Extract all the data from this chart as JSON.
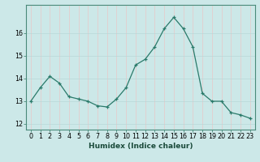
{
  "x": [
    0,
    1,
    2,
    3,
    4,
    5,
    6,
    7,
    8,
    9,
    10,
    11,
    12,
    13,
    14,
    15,
    16,
    17,
    18,
    19,
    20,
    21,
    22,
    23
  ],
  "y": [
    13.0,
    13.6,
    14.1,
    13.8,
    13.2,
    13.1,
    13.0,
    12.8,
    12.75,
    13.1,
    13.6,
    14.6,
    14.85,
    15.4,
    16.2,
    16.7,
    16.2,
    15.4,
    13.35,
    13.0,
    13.0,
    12.5,
    12.4,
    12.25
  ],
  "line_color": "#2a7a6a",
  "marker": "+",
  "marker_color": "#2a7a6a",
  "bg_color": "#cce8e8",
  "grid_color_v": "#e8c8c8",
  "grid_color_h": "#b8d8d8",
  "xlabel": "Humidex (Indice chaleur)",
  "ylim": [
    11.75,
    17.25
  ],
  "xlim": [
    -0.5,
    23.5
  ],
  "yticks": [
    12,
    13,
    14,
    15,
    16
  ],
  "ytick_labels": [
    "12",
    "13",
    "14",
    "15",
    "16"
  ],
  "xticks": [
    0,
    1,
    2,
    3,
    4,
    5,
    6,
    7,
    8,
    9,
    10,
    11,
    12,
    13,
    14,
    15,
    16,
    17,
    18,
    19,
    20,
    21,
    22,
    23
  ],
  "label_fontsize": 6.5,
  "tick_fontsize": 5.8
}
